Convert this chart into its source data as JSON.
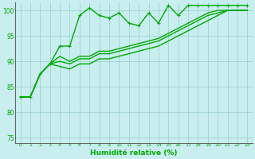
{
  "title": "",
  "xlabel": "Humidité relative (%)",
  "ylabel": "",
  "background_color": "#c8eef0",
  "grid_color": "#99cccc",
  "line_color": "#00aa00",
  "xlim": [
    -0.5,
    23.5
  ],
  "ylim": [
    74,
    101.5
  ],
  "yticks": [
    75,
    80,
    85,
    90,
    95,
    100
  ],
  "xticks": [
    0,
    1,
    2,
    3,
    4,
    5,
    6,
    7,
    8,
    9,
    10,
    11,
    12,
    13,
    14,
    15,
    16,
    17,
    18,
    19,
    20,
    21,
    22,
    23
  ],
  "series": [
    {
      "y": [
        83,
        83,
        87.5,
        89.5,
        93,
        93,
        99,
        100.5,
        99,
        98.5,
        99.5,
        97.5,
        97,
        99.5,
        97.5,
        101,
        99,
        101,
        101,
        101,
        101,
        101,
        101,
        101
      ],
      "marker": true,
      "lw": 1.0
    },
    {
      "y": [
        83,
        83,
        87.5,
        89.5,
        91,
        90,
        91,
        91,
        92,
        92,
        92.5,
        93,
        93.5,
        94,
        94.5,
        95.5,
        96.5,
        97.5,
        98.5,
        99.5,
        100,
        100,
        100,
        100
      ],
      "marker": false,
      "lw": 1.0
    },
    {
      "y": [
        83,
        83,
        87.5,
        89.5,
        90,
        89.5,
        90.5,
        90.5,
        91.5,
        91.5,
        92,
        92.5,
        93,
        93.5,
        94,
        95,
        96,
        97,
        98,
        99,
        99.5,
        100,
        100,
        100
      ],
      "marker": false,
      "lw": 1.0
    },
    {
      "y": [
        83,
        83,
        87.5,
        89.5,
        89,
        88.5,
        89.5,
        89.5,
        90.5,
        90.5,
        91,
        91.5,
        92,
        92.5,
        93,
        94,
        95,
        96,
        97,
        98,
        99,
        100,
        100,
        100
      ],
      "marker": false,
      "lw": 1.0
    }
  ]
}
